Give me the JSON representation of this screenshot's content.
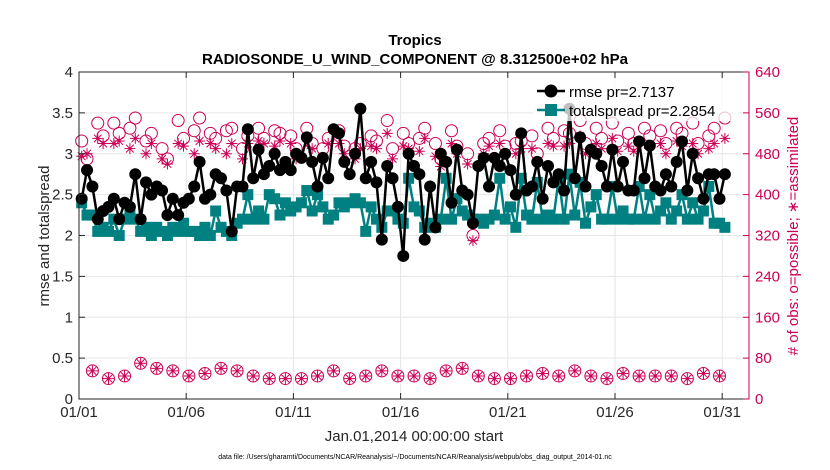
{
  "chart_data": {
    "type": "line",
    "title": "Tropics",
    "subtitle": "RADIOSONDE_U_WIND_COMPONENT @ 8.312500e+02 hPa",
    "xlabel": "Jan.01,2014 00:00:00 start",
    "ylabel": "rmse and totalspread",
    "y2label": "# of obs: o=possible; ∗=assimilated",
    "footer": "data file: /Users/gharamti/Documents/NCAR/Reanalysis/~/Documents/NCAR/Reanalysis/webpub/obs_diag_output_2014-01.nc",
    "xlim": [
      0,
      31.25
    ],
    "ylim": [
      0,
      4
    ],
    "y2lim": [
      0,
      640
    ],
    "x_ticks": [
      0,
      5,
      10,
      15,
      20,
      25,
      30
    ],
    "x_tick_labels": [
      "01/01",
      "01/06",
      "01/11",
      "01/16",
      "01/21",
      "01/26",
      "01/31"
    ],
    "y_ticks": [
      0,
      0.5,
      1,
      1.5,
      2,
      2.5,
      3,
      3.5,
      4
    ],
    "y_tick_labels": [
      "0",
      "0.5",
      "1",
      "1.5",
      "2",
      "2.5",
      "3",
      "3.5",
      "4"
    ],
    "y2_ticks": [
      0,
      80,
      160,
      240,
      320,
      400,
      480,
      560,
      640
    ],
    "y2_tick_labels": [
      "0",
      "80",
      "160",
      "240",
      "320",
      "400",
      "480",
      "560",
      "640"
    ],
    "grid": true,
    "legend_position": "top-right",
    "colors": {
      "rmse": "#000000",
      "spread": "#008080",
      "obs": "#cc0055",
      "axis": "#262626",
      "grid": "#e6e6e6"
    },
    "series": [
      {
        "name": "rmse",
        "legend": "rmse pr=2.7137",
        "values": [
          2.45,
          2.8,
          2.6,
          2.2,
          2.3,
          2.35,
          2.45,
          2.2,
          2.4,
          2.35,
          2.75,
          2.2,
          2.65,
          2.5,
          2.6,
          2.55,
          2.25,
          2.45,
          2.25,
          2.4,
          2.45,
          2.6,
          2.9,
          2.45,
          2.5,
          2.75,
          2.7,
          2.55,
          2.05,
          2.6,
          2.6,
          3.3,
          2.7,
          3.05,
          2.75,
          2.85,
          3.0,
          2.8,
          2.9,
          2.8,
          3.0,
          2.95,
          3.2,
          2.9,
          2.6,
          2.95,
          2.7,
          3.3,
          3.25,
          2.9,
          2.75,
          3.0,
          3.55,
          2.7,
          2.9,
          2.65,
          1.95,
          2.85,
          2.7,
          2.35,
          1.75,
          3.0,
          2.85,
          2.75,
          1.95,
          2.6,
          2.1,
          3.0,
          2.9,
          2.4,
          3.05,
          2.55,
          2.5,
          2.15,
          2.85,
          2.95,
          2.6,
          2.95,
          2.85,
          3.0,
          2.8,
          2.5,
          3.25,
          2.55,
          2.6,
          2.9,
          2.45,
          2.85,
          2.65,
          2.75,
          2.55,
          3.55,
          2.7,
          3.2,
          2.6,
          3.05,
          3.0,
          2.85,
          2.6,
          3.05,
          2.6,
          2.9,
          2.55,
          2.55,
          3.15,
          2.7,
          3.1,
          2.6,
          2.55,
          2.75,
          2.6,
          2.9,
          3.15,
          2.55,
          3.0,
          2.7,
          2.45,
          2.75,
          2.75,
          2.45,
          2.75
        ]
      },
      {
        "name": "totalspread",
        "legend": "totalspread pr=2.2854",
        "values": [
          2.4,
          2.25,
          2.25,
          2.05,
          2.1,
          2.05,
          2.2,
          2.0,
          2.2,
          2.25,
          2.2,
          2.05,
          2.1,
          2.0,
          2.1,
          2.05,
          2.0,
          2.1,
          2.05,
          2.15,
          2.05,
          2.05,
          2.0,
          2.1,
          2.0,
          2.3,
          2.1,
          2.05,
          2.0,
          2.15,
          2.2,
          2.5,
          2.2,
          2.3,
          2.2,
          2.5,
          2.45,
          2.25,
          2.4,
          2.3,
          2.35,
          2.4,
          2.55,
          2.3,
          2.5,
          2.35,
          2.2,
          2.25,
          2.4,
          2.35,
          2.4,
          2.45,
          2.4,
          2.05,
          2.35,
          2.2,
          2.1,
          2.3,
          2.3,
          2.2,
          2.15,
          2.7,
          2.35,
          2.3,
          2.1,
          2.15,
          2.1,
          2.2,
          2.7,
          2.2,
          2.45,
          2.3,
          2.25,
          2.2,
          2.2,
          2.15,
          2.2,
          2.25,
          2.7,
          2.2,
          2.35,
          2.1,
          2.7,
          2.25,
          2.2,
          2.65,
          2.2,
          2.25,
          2.2,
          2.7,
          2.2,
          2.75,
          2.25,
          2.65,
          2.15,
          2.35,
          2.5,
          2.2,
          2.2,
          2.6,
          2.2,
          2.3,
          2.2,
          2.2,
          2.6,
          2.2,
          2.5,
          2.2,
          2.3,
          2.4,
          2.2,
          2.3,
          2.5,
          2.2,
          2.4,
          2.2,
          2.3,
          2.6,
          2.15,
          2.15,
          2.1
        ]
      }
    ],
    "obs_possible": [
      505,
      470,
      55,
      540,
      515,
      40,
      540,
      520,
      45,
      530,
      550,
      70,
      505,
      520,
      60,
      490,
      470,
      55,
      545,
      510,
      45,
      525,
      550,
      50,
      520,
      510,
      60,
      525,
      530,
      55,
      490,
      515,
      45,
      530,
      510,
      40,
      525,
      520,
      40,
      515,
      490,
      40,
      530,
      500,
      45,
      490,
      510,
      55,
      525,
      495,
      40,
      490,
      500,
      45,
      515,
      505,
      55,
      545,
      490,
      45,
      520,
      500,
      45,
      510,
      530,
      40,
      500,
      470,
      55,
      525,
      495,
      60,
      480,
      320,
      45,
      500,
      510,
      40,
      525,
      495,
      40,
      500,
      505,
      45,
      515,
      480,
      50,
      530,
      510,
      45,
      525,
      520,
      55,
      545,
      500,
      45,
      530,
      510,
      40,
      540,
      505,
      50,
      520,
      500,
      45,
      530,
      515,
      45,
      525,
      500,
      45,
      530,
      520,
      40,
      540,
      500,
      50,
      515,
      530,
      45,
      550
    ],
    "obs_assimilated": [
      475,
      480,
      55,
      510,
      500,
      40,
      500,
      505,
      45,
      490,
      510,
      70,
      480,
      500,
      60,
      470,
      460,
      55,
      500,
      495,
      45,
      480,
      505,
      50,
      500,
      490,
      60,
      480,
      500,
      55,
      470,
      500,
      45,
      505,
      500,
      40,
      495,
      505,
      40,
      500,
      470,
      40,
      510,
      490,
      45,
      470,
      500,
      55,
      500,
      480,
      40,
      470,
      490,
      45,
      495,
      490,
      55,
      520,
      470,
      45,
      495,
      490,
      45,
      485,
      510,
      40,
      475,
      455,
      55,
      500,
      480,
      60,
      460,
      310,
      45,
      480,
      495,
      40,
      500,
      480,
      40,
      480,
      490,
      45,
      490,
      465,
      50,
      500,
      495,
      45,
      495,
      500,
      55,
      515,
      480,
      45,
      500,
      490,
      40,
      510,
      485,
      50,
      495,
      485,
      45,
      500,
      495,
      45,
      500,
      480,
      45,
      505,
      495,
      40,
      500,
      480,
      50,
      490,
      500,
      45,
      510
    ]
  }
}
